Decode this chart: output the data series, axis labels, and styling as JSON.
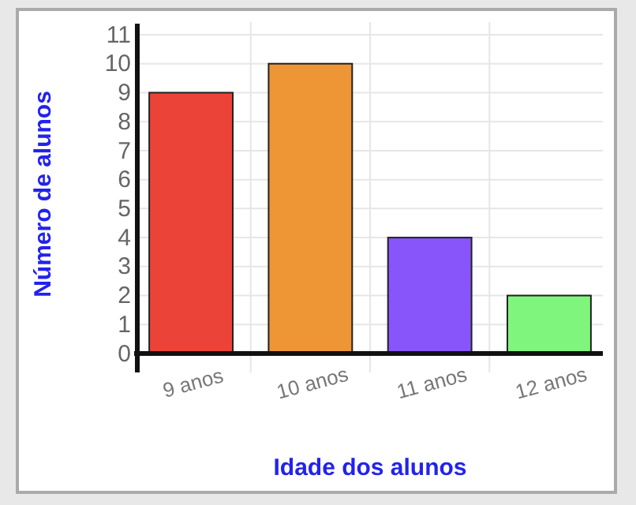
{
  "chart_data": {
    "type": "bar",
    "xlabel": "Idade dos alunos",
    "ylabel": "Número de alunos",
    "categories": [
      "9 anos",
      "10 anos",
      "11 anos",
      "12 anos"
    ],
    "values": [
      9,
      10,
      4,
      2
    ],
    "colors": [
      "#ec4338",
      "#ee9535",
      "#8855fa",
      "#80f57e"
    ],
    "ylim": [
      0,
      11
    ],
    "yticks": [
      0,
      1,
      2,
      3,
      4,
      5,
      6,
      7,
      8,
      9,
      10,
      11
    ],
    "grid": true
  }
}
